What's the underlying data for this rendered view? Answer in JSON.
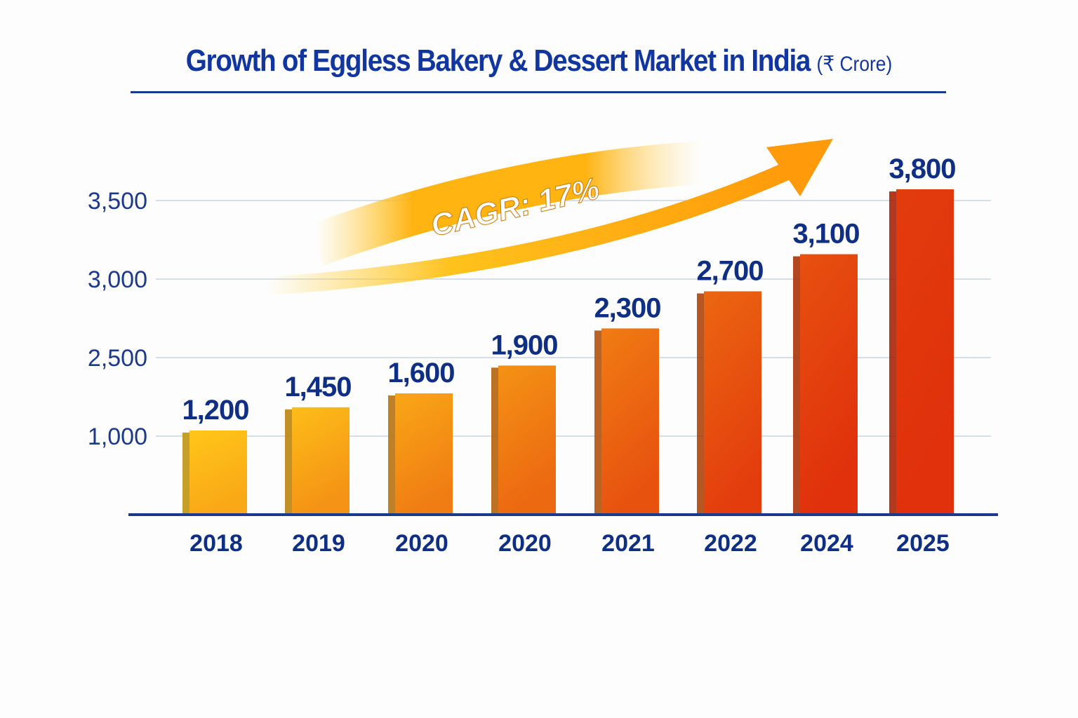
{
  "chart_data": {
    "type": "bar",
    "title": "Growth of Eggless Bakery & Dessert Market in India",
    "unit_label": "(₹ Crore)",
    "categories": [
      "2018",
      "2019",
      "2020",
      "2020",
      "2021",
      "2022",
      "2024",
      "2025"
    ],
    "values": [
      1200,
      1450,
      1600,
      1900,
      2300,
      2700,
      3100,
      3800
    ],
    "value_labels": [
      "1,200",
      "1,450",
      "1,600",
      "1,900",
      "2,300",
      "2,700",
      "3,100",
      "3,800"
    ],
    "y_ticks": [
      1000,
      2500,
      3000,
      3500
    ],
    "y_tick_labels": [
      "1,000",
      "2,500",
      "3,000",
      "3,500"
    ],
    "ylim": [
      300,
      4000
    ],
    "grid": true,
    "xlabel": "",
    "ylabel": "",
    "annotation": "CAGR: 17%",
    "colors": {
      "text": "#0f2f85",
      "bar_start": "#ffc619",
      "bar_end": "#e0300c",
      "axis": "#1c3a8c",
      "grid": "#c9d3e6"
    }
  }
}
